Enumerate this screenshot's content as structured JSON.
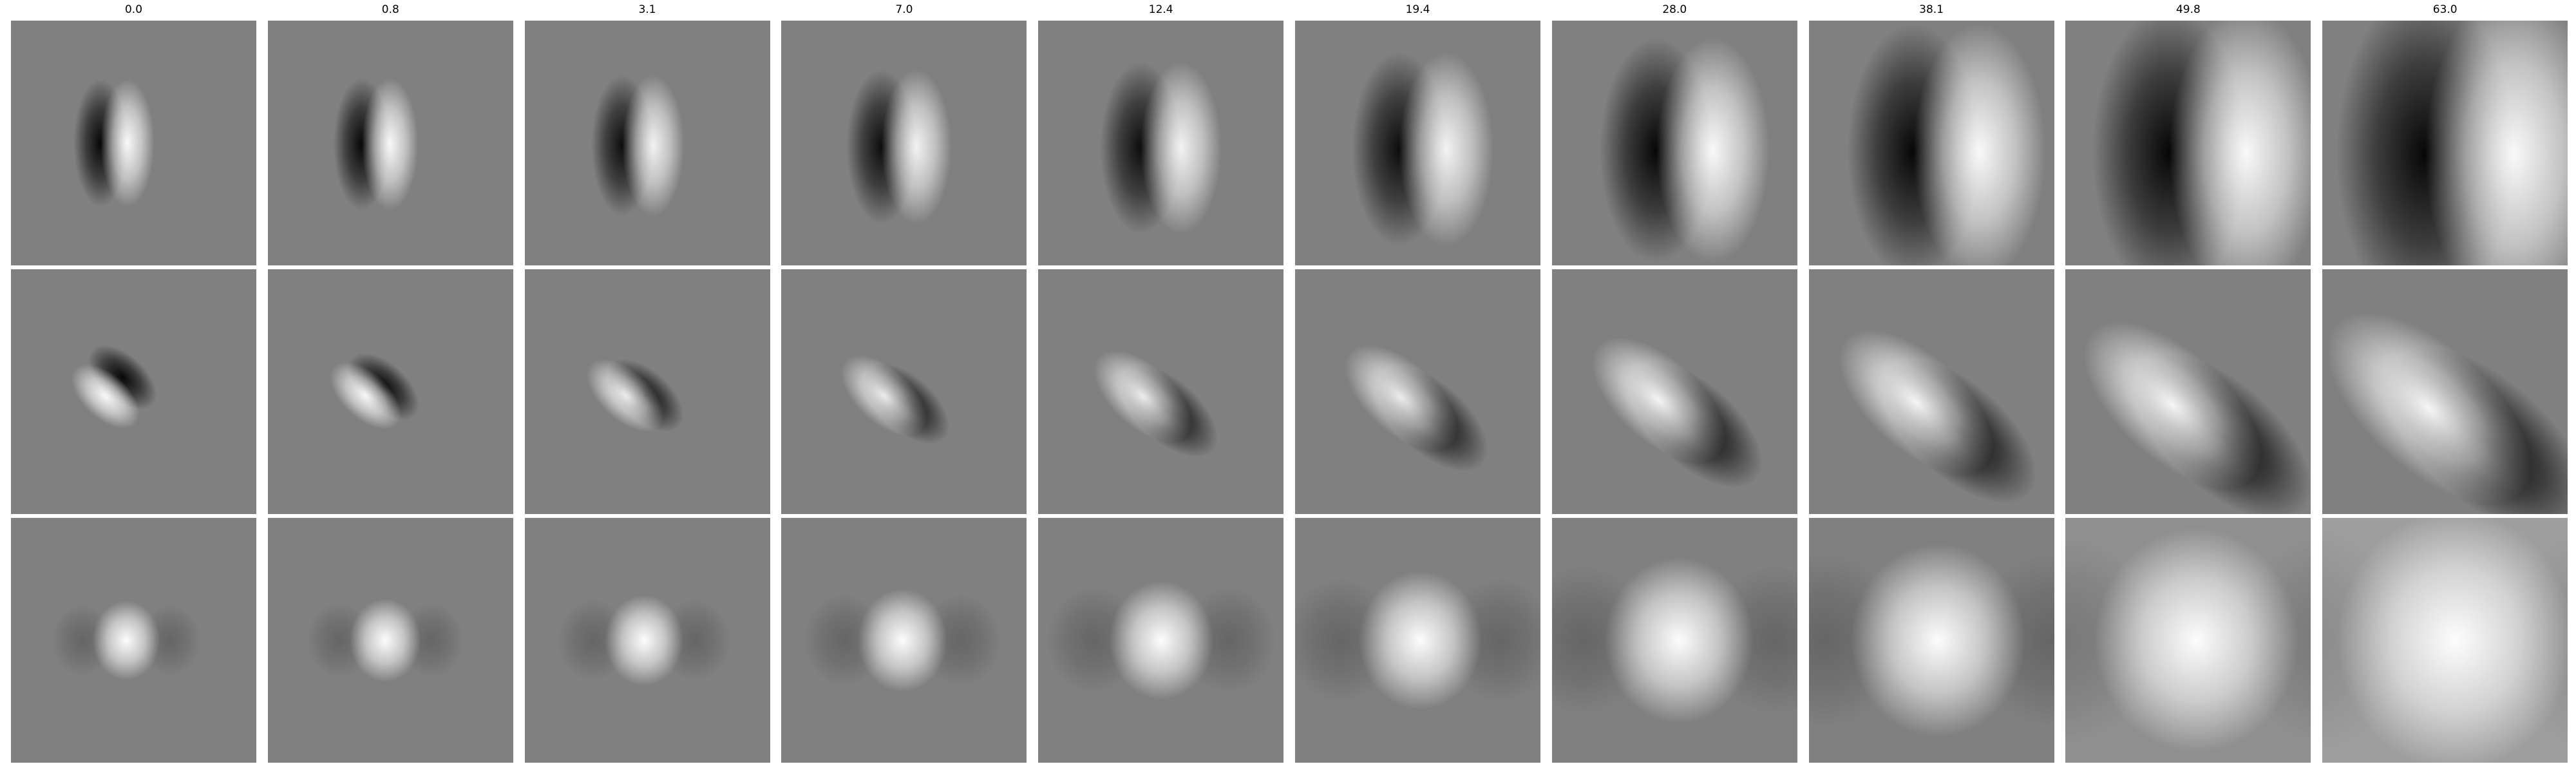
{
  "figure": {
    "column_titles": [
      "0.0",
      "0.8",
      "3.1",
      "7.0",
      "12.4",
      "19.4",
      "28.0",
      "38.1",
      "49.8",
      "63.0"
    ],
    "rows": 3,
    "columns": 10,
    "background_color": "#808080"
  }
}
